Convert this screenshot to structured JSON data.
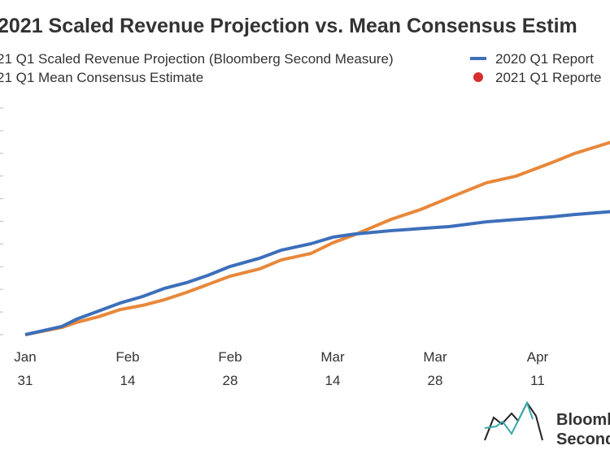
{
  "chart_data": {
    "type": "line",
    "title": "2021 Scaled Revenue Projection vs. Mean Consensus Estim",
    "xlim": [
      0,
      80
    ],
    "ylim": [
      0,
      100
    ],
    "yticks": [
      0,
      10,
      20,
      30,
      40,
      50,
      60,
      70,
      80,
      90,
      100
    ],
    "xticks": [
      {
        "value": 0,
        "label": "Jan 31"
      },
      {
        "value": 14,
        "label": "Feb 14"
      },
      {
        "value": 28,
        "label": "Feb 28"
      },
      {
        "value": 42,
        "label": "Mar 14"
      },
      {
        "value": 56,
        "label": "Mar 28"
      },
      {
        "value": 70,
        "label": "Apr 11"
      }
    ],
    "x": [
      0,
      5,
      7,
      10,
      13,
      16,
      19,
      22,
      25,
      28,
      32,
      35,
      39,
      42,
      45,
      50,
      54,
      58,
      63,
      67,
      72,
      75,
      80
    ],
    "series": [
      {
        "name": "21 Q1 Scaled Revenue Projection (Bloomberg Second Measure)",
        "color": "#e8883a",
        "values": [
          0,
          3.2,
          5.4,
          7.9,
          11.1,
          12.9,
          15.4,
          18.6,
          22.2,
          25.8,
          29,
          33,
          35.8,
          40.5,
          44.1,
          50.9,
          55.2,
          60.5,
          67,
          69.9,
          76,
          79.9,
          84.9
        ]
      },
      {
        "name": "2020 Q1 Report",
        "color": "#3d6fba",
        "values": [
          0,
          3.6,
          6.8,
          10.4,
          14,
          16.8,
          20.4,
          22.9,
          26.2,
          30.1,
          33.7,
          37.3,
          40.1,
          43,
          44.4,
          45.9,
          46.8,
          47.7,
          49.8,
          50.8,
          52,
          53,
          54.3
        ]
      }
    ],
    "legend_extra": [
      {
        "name": "21 Q1 Mean Consensus Estimate"
      },
      {
        "name": "2021 Q1 Reporte",
        "color": "#d62e2e"
      }
    ],
    "logo": [
      "Bloomb",
      "Second"
    ]
  }
}
